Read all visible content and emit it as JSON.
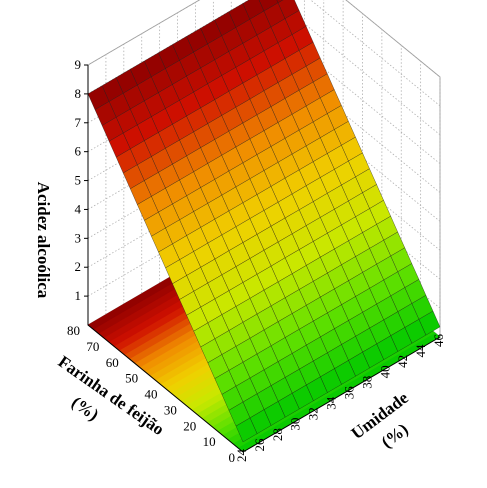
{
  "chart_data": {
    "type": "surface3d",
    "title": "",
    "zlabel": "Acidez alcoólica",
    "xlabel_line1": "Umidade",
    "xlabel_line2": "(%)",
    "ylabel_line1": "Farinha de feijão",
    "ylabel_line2": "(%)",
    "x_ticks": [
      24,
      26,
      28,
      30,
      32,
      34,
      36,
      38,
      40,
      42,
      44,
      46
    ],
    "y_ticks": [
      0,
      10,
      20,
      30,
      40,
      50,
      60,
      70,
      80
    ],
    "z_ticks": [
      1,
      2,
      3,
      4,
      5,
      6,
      7,
      8,
      9
    ],
    "xlim": [
      24,
      46
    ],
    "ylim": [
      0,
      80
    ],
    "zlim": [
      0,
      9
    ],
    "surface_corners": [
      {
        "x": 24,
        "y": 0,
        "z": 0.35
      },
      {
        "x": 46,
        "y": 0,
        "z": 0.35
      },
      {
        "x": 24,
        "y": 80,
        "z": 8.0
      },
      {
        "x": 46,
        "y": 80,
        "z": 8.0
      }
    ],
    "grid_divisions": {
      "x": 14,
      "y": 22
    },
    "colormap": [
      "#00c800",
      "#5fe000",
      "#c8e800",
      "#f0d000",
      "#f08c00",
      "#d01000",
      "#8c0000"
    ]
  }
}
